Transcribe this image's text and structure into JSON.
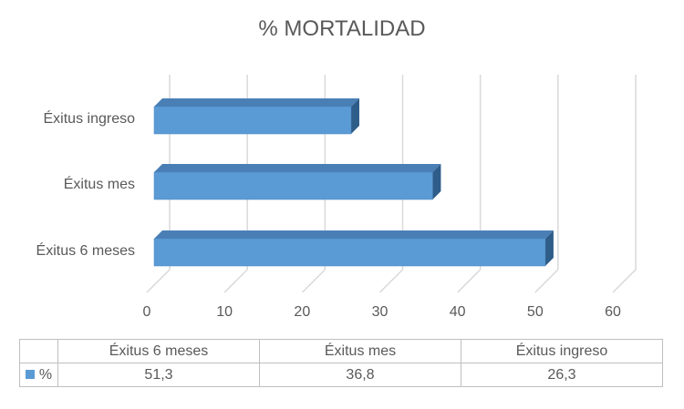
{
  "chart_data": {
    "type": "bar",
    "orientation": "horizontal",
    "title": "% MORTALIDAD",
    "categories": [
      "Éxitus 6 meses",
      "Éxitus mes",
      "Éxitus ingreso"
    ],
    "series": [
      {
        "name": "%",
        "values": [
          51.3,
          36.8,
          26.3
        ],
        "value_labels": [
          "51,3",
          "36,8",
          "26,3"
        ],
        "color": "#5b9bd5"
      }
    ],
    "xlim": [
      0,
      60
    ],
    "xticks": [
      "0",
      "10",
      "20",
      "30",
      "40",
      "50",
      "60"
    ],
    "xlabel": "",
    "ylabel": "",
    "grid": true,
    "bar_style": "3d",
    "data_table": true,
    "gridline_color": "#d9d9d9"
  }
}
